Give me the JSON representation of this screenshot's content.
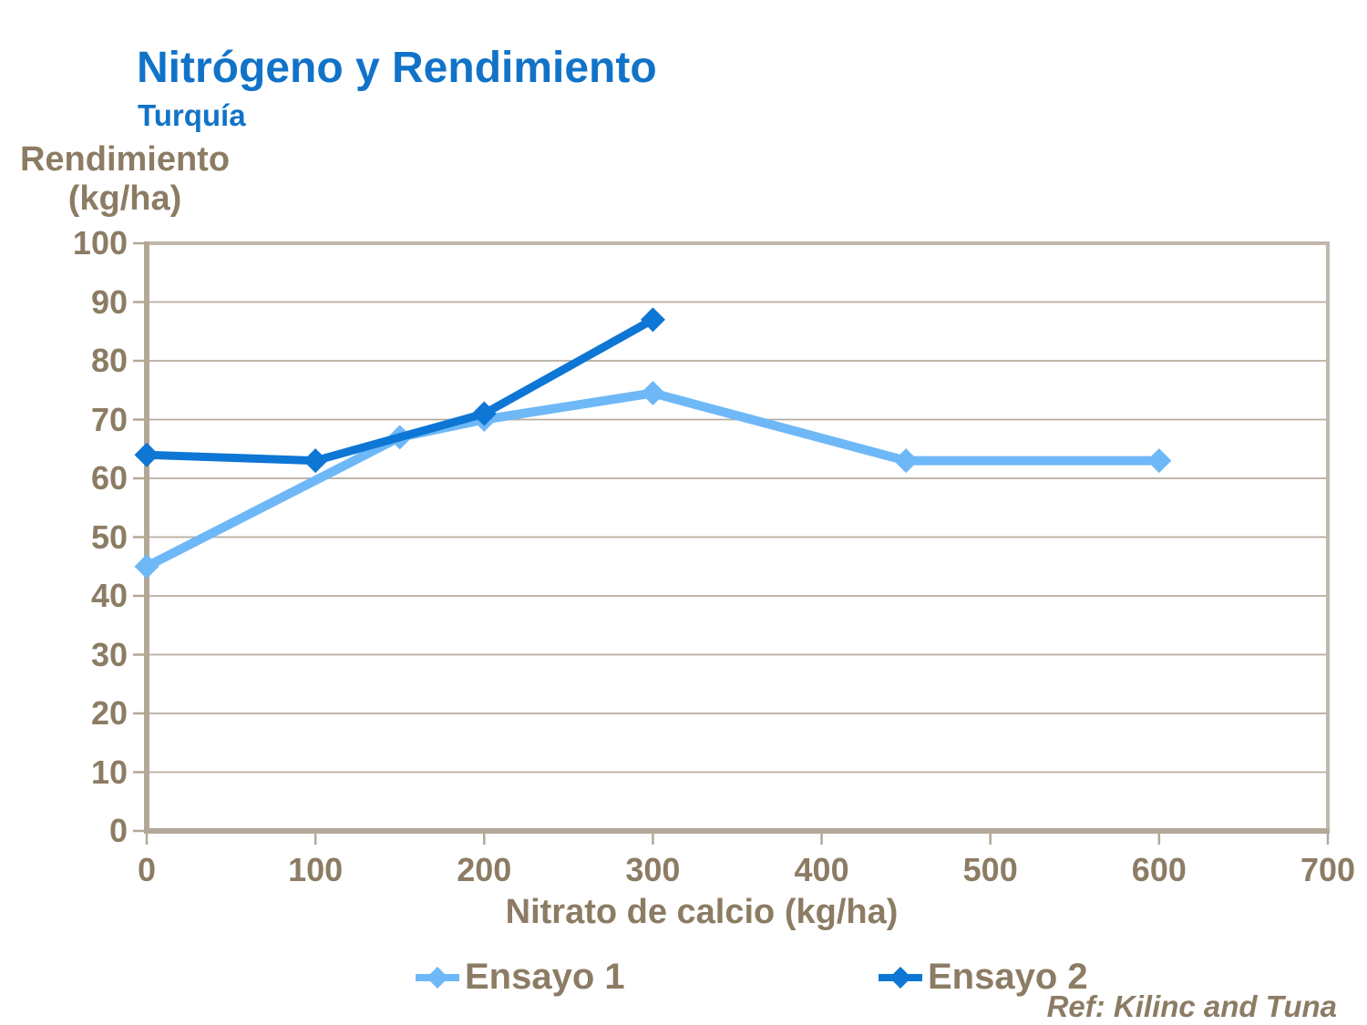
{
  "chart_data": {
    "type": "line",
    "title": "Nitrógeno y Rendimiento",
    "subtitle": "Turquía",
    "xlabel": "Nitrato de calcio (kg/ha)",
    "ylabel": "Rendimiento (kg/ha)",
    "ylabel_lines": [
      "Rendimiento",
      "(kg/ha)"
    ],
    "xlim": [
      0,
      700
    ],
    "ylim": [
      0,
      100
    ],
    "x_ticks": [
      0,
      100,
      200,
      300,
      400,
      500,
      600,
      700
    ],
    "y_ticks": [
      0,
      10,
      20,
      30,
      40,
      50,
      60,
      70,
      80,
      90,
      100
    ],
    "grid": "horizontal",
    "legend_position": "bottom",
    "marker": "diamond",
    "series": [
      {
        "name": "Ensayo 1",
        "color": "#6eb8f7",
        "points": [
          [
            0,
            45
          ],
          [
            150,
            67
          ],
          [
            200,
            70
          ],
          [
            300,
            74.5
          ],
          [
            450,
            63
          ],
          [
            600,
            63
          ]
        ]
      },
      {
        "name": "Ensayo 2",
        "color": "#0e76d4",
        "points": [
          [
            0,
            64
          ],
          [
            100,
            63
          ],
          [
            200,
            71
          ],
          [
            300,
            87
          ]
        ]
      }
    ],
    "annotation": "Ref: Kilinc and Tuna"
  },
  "colors": {
    "title_blue": "#1173c8",
    "text_brown": "#8c7c64",
    "gridline": "#b6ac9e",
    "frame": "#c1b7ab",
    "axis": "#b3a897",
    "background": "#ffffff"
  }
}
